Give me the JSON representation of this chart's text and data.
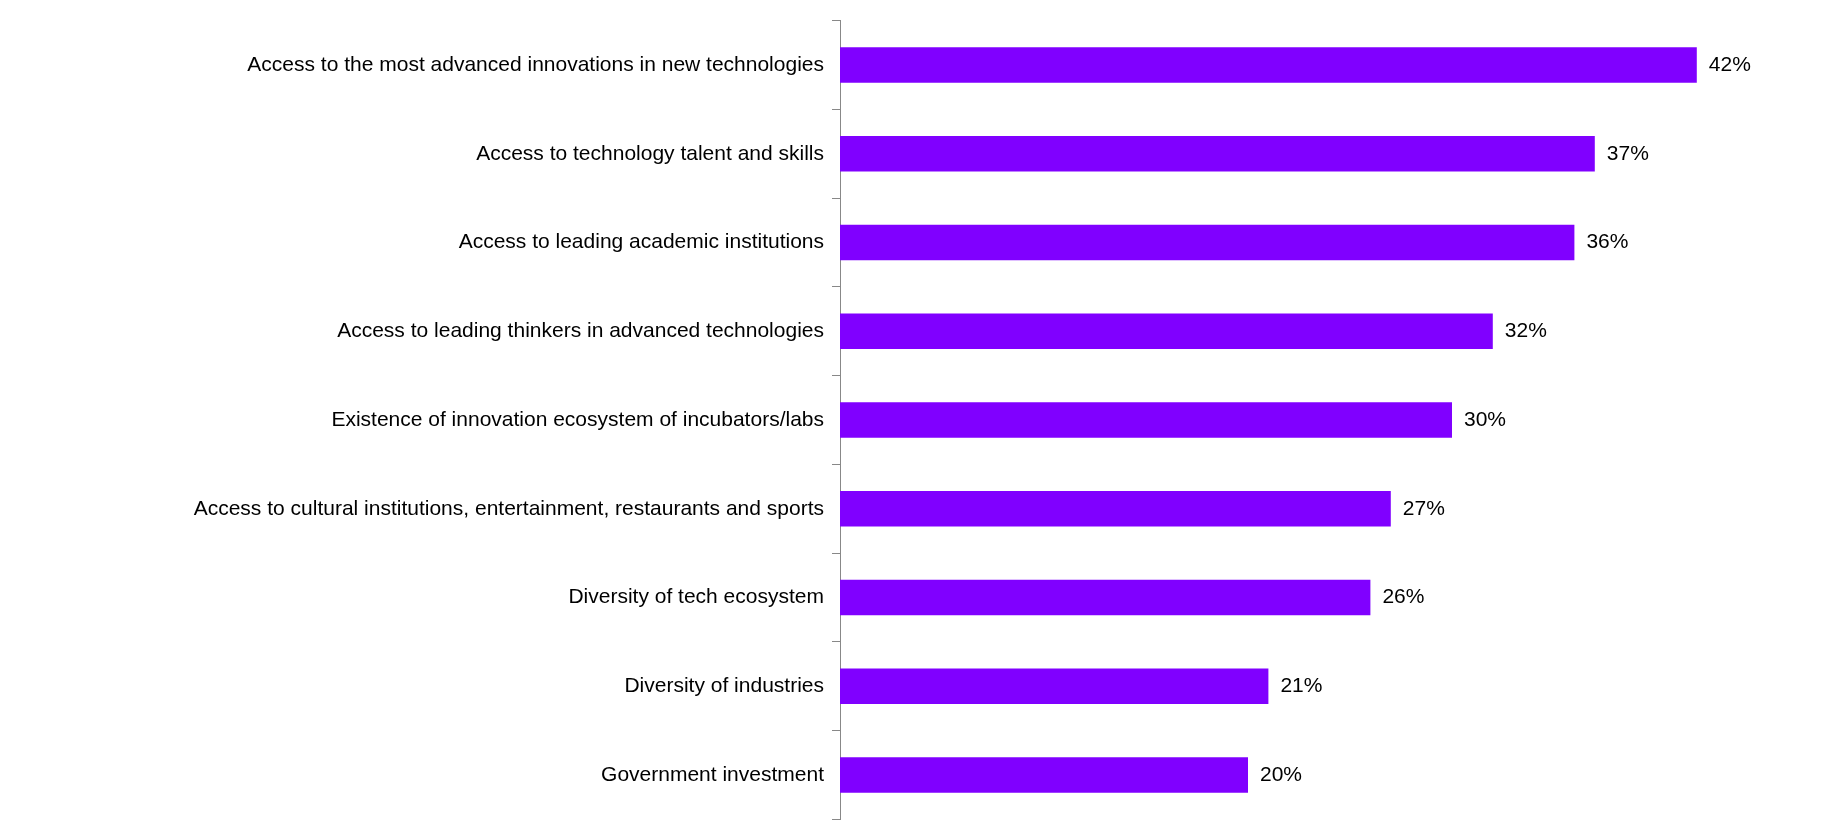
{
  "chart_data": {
    "type": "bar",
    "orientation": "horizontal",
    "categories": [
      "Access to the most advanced innovations in new technologies",
      "Access to technology talent and skills",
      "Access to leading academic institutions",
      "Access to leading thinkers in advanced technologies",
      "Existence of innovation ecosystem of incubators/labs",
      "Access to cultural institutions, entertainment, restaurants and sports",
      "Diversity of tech ecosystem",
      "Diversity of industries",
      "Government investment"
    ],
    "values": [
      42,
      37,
      36,
      32,
      30,
      27,
      26,
      21,
      20
    ],
    "value_labels": [
      "42%",
      "37%",
      "36%",
      "32%",
      "30%",
      "27%",
      "26%",
      "21%",
      "20%"
    ],
    "color": "#8000ff",
    "tick_labels": "y",
    "legend": false
  }
}
